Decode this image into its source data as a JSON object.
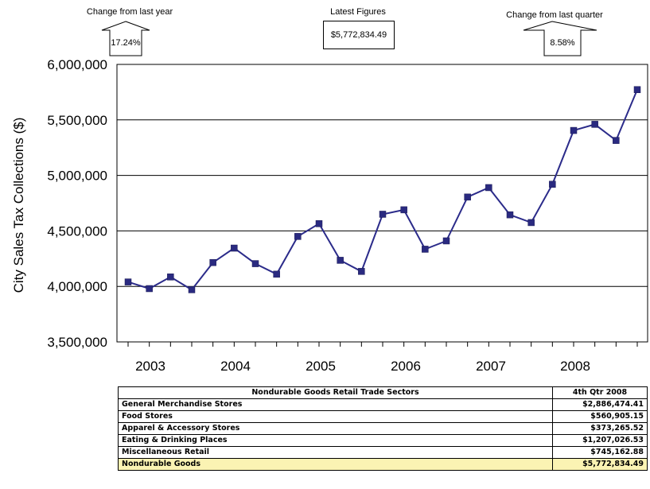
{
  "annotations": {
    "yoy": {
      "label": "Change from last year",
      "value": "17.24%"
    },
    "latest": {
      "label": "Latest Figures",
      "value": "$5,772,834.49"
    },
    "qoq": {
      "label": "Change from last quarter",
      "value": "8.58%"
    }
  },
  "chart_data": {
    "type": "line",
    "title": "",
    "xlabel": "",
    "ylabel": "City Sales Tax Collections ($)",
    "ylim": [
      3500000,
      6000000
    ],
    "yticks": [
      3500000,
      4000000,
      4500000,
      5000000,
      5500000,
      6000000
    ],
    "ytick_labels": [
      "3,500,000",
      "4,000,000",
      "4,500,000",
      "5,000,000",
      "5,500,000",
      "6,000,000"
    ],
    "xtick_labels": [
      "2003",
      "2004",
      "2005",
      "2006",
      "2007",
      "2008"
    ],
    "grid": "horizontal",
    "legend": "none",
    "line_color": "#2b2b8a",
    "marker_color": "#2a2a80",
    "series": [
      {
        "values": [
          4040000,
          3980000,
          4085000,
          3970000,
          4215000,
          4345000,
          4205000,
          4110000,
          4450000,
          4565000,
          4235000,
          4135000,
          4650000,
          4690000,
          4335000,
          4410000,
          4805000,
          4890000,
          4645000,
          4575000,
          4920000,
          5405000,
          5460000,
          5315000,
          5772834
        ]
      }
    ]
  },
  "table": {
    "header": {
      "sector": "Nondurable Goods Retail Trade Sectors",
      "period": "4th Qtr 2008"
    },
    "rows": [
      {
        "sector": "General Merchandise Stores",
        "value": "$2,886,474.41"
      },
      {
        "sector": "Food Stores",
        "value": "$560,905.15"
      },
      {
        "sector": "Apparel & Accessory Stores",
        "value": "$373,265.52"
      },
      {
        "sector": "Eating & Drinking Places",
        "value": "$1,207,026.53"
      },
      {
        "sector": "Miscellaneous Retail",
        "value": "$745,162.88"
      }
    ],
    "total": {
      "sector": "Nondurable Goods",
      "value": "$5,772,834.49"
    },
    "total_color": "#fbf3b3"
  }
}
